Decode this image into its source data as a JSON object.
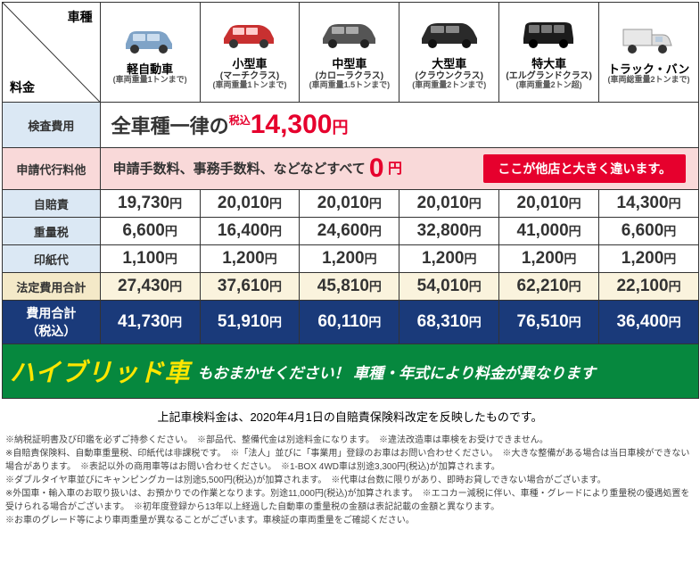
{
  "header": {
    "diag_top": "車種",
    "diag_bot": "料金",
    "cars": [
      {
        "name": "軽自動車",
        "sub": "",
        "sub2": "(車両重量1トンまで)",
        "color": "#7fa3c7"
      },
      {
        "name": "小型車",
        "sub": "(マーチクラス)",
        "sub2": "(車両重量1トンまで)",
        "color": "#c83030"
      },
      {
        "name": "中型車",
        "sub": "(カローラクラス)",
        "sub2": "(車両重量1.5トンまで)",
        "color": "#555555"
      },
      {
        "name": "大型車",
        "sub": "(クラウンクラス)",
        "sub2": "(車両重量2トンまで)",
        "color": "#333333"
      },
      {
        "name": "特大車",
        "sub": "(エルグランドクラス)",
        "sub2": "(車両重量2トン超)",
        "color": "#222222"
      },
      {
        "name": "トラック・バン",
        "sub": "",
        "sub2": "(車両総重量2トンまで)",
        "color": "#e0e0e0"
      }
    ]
  },
  "rows": {
    "inspection": {
      "label": "検査費用",
      "prefix": "全車種一律の",
      "small": "税込",
      "amount": "14,300",
      "yen": "円"
    },
    "agency": {
      "label": "申請代行料他",
      "text": "申請手数料、事務手数料、などなどすべて ",
      "zero": "0",
      "zeroyen": " 円",
      "badge": "ここが他店と大きく違います。"
    },
    "jibaiseki": {
      "label": "自賠責",
      "values": [
        "19,730円",
        "20,010円",
        "20,010円",
        "20,010円",
        "20,010円",
        "14,300円"
      ]
    },
    "juryozei": {
      "label": "重量税",
      "values": [
        "6,600円",
        "16,400円",
        "24,600円",
        "32,800円",
        "41,000円",
        "6,600円"
      ]
    },
    "inshi": {
      "label": "印紙代",
      "values": [
        "1,100円",
        "1,200円",
        "1,200円",
        "1,200円",
        "1,200円",
        "1,200円"
      ]
    },
    "hotei": {
      "label": "法定費用合計",
      "values": [
        "27,430円",
        "37,610円",
        "45,810円",
        "54,010円",
        "62,210円",
        "22,100円"
      ]
    },
    "total": {
      "label1": "費用合計",
      "label2": "（税込）",
      "values": [
        "41,730円",
        "51,910円",
        "60,110円",
        "68,310円",
        "76,510円",
        "36,400円"
      ]
    },
    "hybrid": {
      "big": "ハイブリッド車",
      "rest": "もおまかせください！ 車種・年式により料金が異なります"
    }
  },
  "note1": "上記車検料金は、2020年4月1日の自賠責保険料改定を反映したものです。",
  "notes": "※納税証明書及び印鑑を必ずご持参ください。　※部品代、整備代金は別途料金になります。　※違法改造車は車検をお受けできません。\n※自賠責保険料、自動車重量税、印紙代は非課税です。　※「法人」並びに「事業用」登録のお車はお問い合わせください。　※大きな整備がある場合は当日車検ができない場合があります。　※表記以外の商用車等はお問い合わせください。　※1-BOX 4WD車は別途3,300円(税込)が加算されます。\n※ダブルタイヤ車並びにキャンピングカーは別途5,500円(税込)が加算されます。　※代車は台数に限りがあり、即時お貸しできない場合がございます。\n※外国車・輸入車のお取り扱いは、お預かりでの作業となります。別途11,000円(税込)が加算されます。　※エコカー減税に伴い、車種・グレードにより重量税の優遇処置を受けられる場合がございます。　※初年度登録から13年以上経過した自動車の重量税の金額は表記記載の金額と異なります。\n※お車のグレード等により車両重量が異なることがございます。車検証の車両重量をご確認ください。"
}
